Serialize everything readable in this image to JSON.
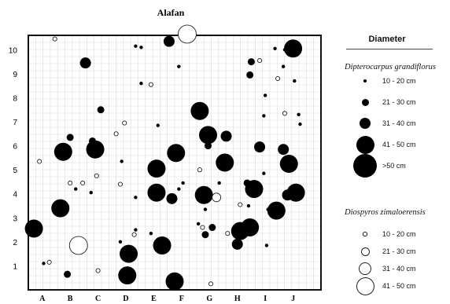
{
  "chart_data": {
    "type": "scatter",
    "title": "Alafan",
    "xlabel": "",
    "ylabel": "",
    "x_ticks": [
      "A",
      "B",
      "C",
      "D",
      "E",
      "F",
      "G",
      "H",
      "I",
      "J"
    ],
    "y_ticks": [
      "1",
      "2",
      "3",
      "4",
      "5",
      "6",
      "7",
      "8",
      "9",
      "10"
    ],
    "xlim": [
      0,
      10.5
    ],
    "ylim": [
      0,
      10.6
    ],
    "grid": true,
    "legend_position": "right",
    "legend_title": "Diameter",
    "series": [
      {
        "name": "Dipterocarpus grandiflorus",
        "style": "filled",
        "classes": [
          "10 - 20 cm",
          "21 - 30 cm",
          "31 - 40 cm",
          "41 - 50 cm",
          ">50 cm"
        ],
        "points": [
          {
            "x": 2.05,
            "y": 9.45,
            "s": 3
          },
          {
            "x": 5.05,
            "y": 10.35,
            "s": 3
          },
          {
            "x": 9.5,
            "y": 10.05,
            "s": 4
          },
          {
            "x": 8.0,
            "y": 9.5,
            "s": 2
          },
          {
            "x": 7.95,
            "y": 8.95,
            "s": 2
          },
          {
            "x": 9.55,
            "y": 8.7,
            "s": 1
          },
          {
            "x": 2.6,
            "y": 7.5,
            "s": 2
          },
          {
            "x": 6.15,
            "y": 7.45,
            "s": 4
          },
          {
            "x": 1.5,
            "y": 6.35,
            "s": 2
          },
          {
            "x": 2.3,
            "y": 6.2,
            "s": 2
          },
          {
            "x": 6.45,
            "y": 6.45,
            "s": 4
          },
          {
            "x": 7.1,
            "y": 6.4,
            "s": 3
          },
          {
            "x": 6.45,
            "y": 6.0,
            "s": 2
          },
          {
            "x": 2.4,
            "y": 5.85,
            "s": 4
          },
          {
            "x": 1.25,
            "y": 5.75,
            "s": 4
          },
          {
            "x": 8.3,
            "y": 5.95,
            "s": 3
          },
          {
            "x": 9.15,
            "y": 5.85,
            "s": 3
          },
          {
            "x": 5.3,
            "y": 5.7,
            "s": 4
          },
          {
            "x": 9.35,
            "y": 5.25,
            "s": 4
          },
          {
            "x": 4.6,
            "y": 5.05,
            "s": 4
          },
          {
            "x": 7.05,
            "y": 5.3,
            "s": 4
          },
          {
            "x": 4.6,
            "y": 4.05,
            "s": 4
          },
          {
            "x": 5.15,
            "y": 3.8,
            "s": 3
          },
          {
            "x": 6.3,
            "y": 3.95,
            "s": 4
          },
          {
            "x": 7.85,
            "y": 4.45,
            "s": 2
          },
          {
            "x": 8.1,
            "y": 4.2,
            "s": 4
          },
          {
            "x": 9.6,
            "y": 4.05,
            "s": 4
          },
          {
            "x": 9.3,
            "y": 3.95,
            "s": 3
          },
          {
            "x": 1.15,
            "y": 3.4,
            "s": 4
          },
          {
            "x": 8.9,
            "y": 3.3,
            "s": 4
          },
          {
            "x": 0.2,
            "y": 2.55,
            "s": 4
          },
          {
            "x": 6.6,
            "y": 2.6,
            "s": 2
          },
          {
            "x": 7.6,
            "y": 2.45,
            "s": 4
          },
          {
            "x": 7.95,
            "y": 2.6,
            "s": 4
          },
          {
            "x": 4.8,
            "y": 1.85,
            "s": 4
          },
          {
            "x": 3.6,
            "y": 1.5,
            "s": 4
          },
          {
            "x": 3.55,
            "y": 0.6,
            "s": 4
          },
          {
            "x": 5.25,
            "y": 0.35,
            "s": 4
          },
          {
            "x": 7.5,
            "y": 1.9,
            "s": 3
          },
          {
            "x": 1.4,
            "y": 0.65,
            "s": 2
          },
          {
            "x": 6.35,
            "y": 2.3,
            "s": 2
          },
          {
            "x": 3.3,
            "y": 2.0,
            "s": 1
          },
          {
            "x": 4.4,
            "y": 2.35,
            "s": 1
          },
          {
            "x": 3.85,
            "y": 3.85,
            "s": 1
          },
          {
            "x": 5.4,
            "y": 4.2,
            "s": 1
          },
          {
            "x": 9.15,
            "y": 9.3,
            "s": 1
          },
          {
            "x": 9.2,
            "y": 10.0,
            "s": 1
          },
          {
            "x": 8.85,
            "y": 10.05,
            "s": 1
          },
          {
            "x": 4.65,
            "y": 6.85,
            "s": 1
          },
          {
            "x": 8.5,
            "y": 8.1,
            "s": 1
          },
          {
            "x": 6.85,
            "y": 4.45,
            "s": 1
          },
          {
            "x": 5.0,
            "y": 2.0,
            "s": 1
          },
          {
            "x": 0.55,
            "y": 1.1,
            "s": 1
          },
          {
            "x": 1.95,
            "y": 2.05,
            "s": 1
          },
          {
            "x": 4.05,
            "y": 8.6,
            "s": 1
          },
          {
            "x": 4.05,
            "y": 10.1,
            "s": 1
          },
          {
            "x": 3.85,
            "y": 10.15,
            "s": 1
          },
          {
            "x": 5.4,
            "y": 9.3,
            "s": 1
          },
          {
            "x": 9.75,
            "y": 6.9,
            "s": 1
          },
          {
            "x": 9.7,
            "y": 7.3,
            "s": 1
          },
          {
            "x": 8.45,
            "y": 7.25,
            "s": 1
          },
          {
            "x": 3.85,
            "y": 2.5,
            "s": 1
          },
          {
            "x": 6.35,
            "y": 3.35,
            "s": 1
          },
          {
            "x": 8.45,
            "y": 4.85,
            "s": 1
          },
          {
            "x": 8.55,
            "y": 1.85,
            "s": 1
          },
          {
            "x": 7.9,
            "y": 3.5,
            "s": 1
          },
          {
            "x": 2.25,
            "y": 4.05,
            "s": 1
          },
          {
            "x": 8.6,
            "y": 3.35,
            "s": 1
          },
          {
            "x": 5.55,
            "y": 4.45,
            "s": 1
          },
          {
            "x": 3.35,
            "y": 5.35,
            "s": 1
          },
          {
            "x": 1.7,
            "y": 4.2,
            "s": 1
          },
          {
            "x": 6.1,
            "y": 2.75,
            "s": 1
          }
        ]
      },
      {
        "name": "Diospyros zimaloerensis",
        "style": "open",
        "classes": [
          "10 - 20 cm",
          "21 - 30 cm",
          "31 - 40 cm",
          "41 - 50 cm"
        ],
        "points": [
          {
            "x": 5.7,
            "y": 10.65,
            "s": 4
          },
          {
            "x": 1.8,
            "y": 1.85,
            "s": 4
          },
          {
            "x": 6.75,
            "y": 3.85,
            "s": 2
          },
          {
            "x": 3.3,
            "y": 4.4,
            "s": 1
          },
          {
            "x": 0.4,
            "y": 5.35,
            "s": 1
          },
          {
            "x": 0.75,
            "y": 1.15,
            "s": 1
          },
          {
            "x": 2.5,
            "y": 0.8,
            "s": 1
          },
          {
            "x": 6.55,
            "y": 0.25,
            "s": 1
          },
          {
            "x": 3.8,
            "y": 2.3,
            "s": 1
          },
          {
            "x": 4.4,
            "y": 8.55,
            "s": 1
          },
          {
            "x": 9.2,
            "y": 7.35,
            "s": 1
          },
          {
            "x": 8.95,
            "y": 8.8,
            "s": 1
          },
          {
            "x": 8.3,
            "y": 9.55,
            "s": 1
          },
          {
            "x": 0.95,
            "y": 10.45,
            "s": 1
          },
          {
            "x": 3.45,
            "y": 6.95,
            "s": 1
          },
          {
            "x": 3.15,
            "y": 6.5,
            "s": 1
          },
          {
            "x": 2.45,
            "y": 4.75,
            "s": 1
          },
          {
            "x": 1.95,
            "y": 4.45,
            "s": 1
          },
          {
            "x": 6.25,
            "y": 2.6,
            "s": 1
          },
          {
            "x": 7.6,
            "y": 3.55,
            "s": 1
          },
          {
            "x": 6.15,
            "y": 5.0,
            "s": 1
          },
          {
            "x": 1.5,
            "y": 4.45,
            "s": 1
          },
          {
            "x": 7.15,
            "y": 2.35,
            "s": 1
          }
        ]
      }
    ]
  }
}
